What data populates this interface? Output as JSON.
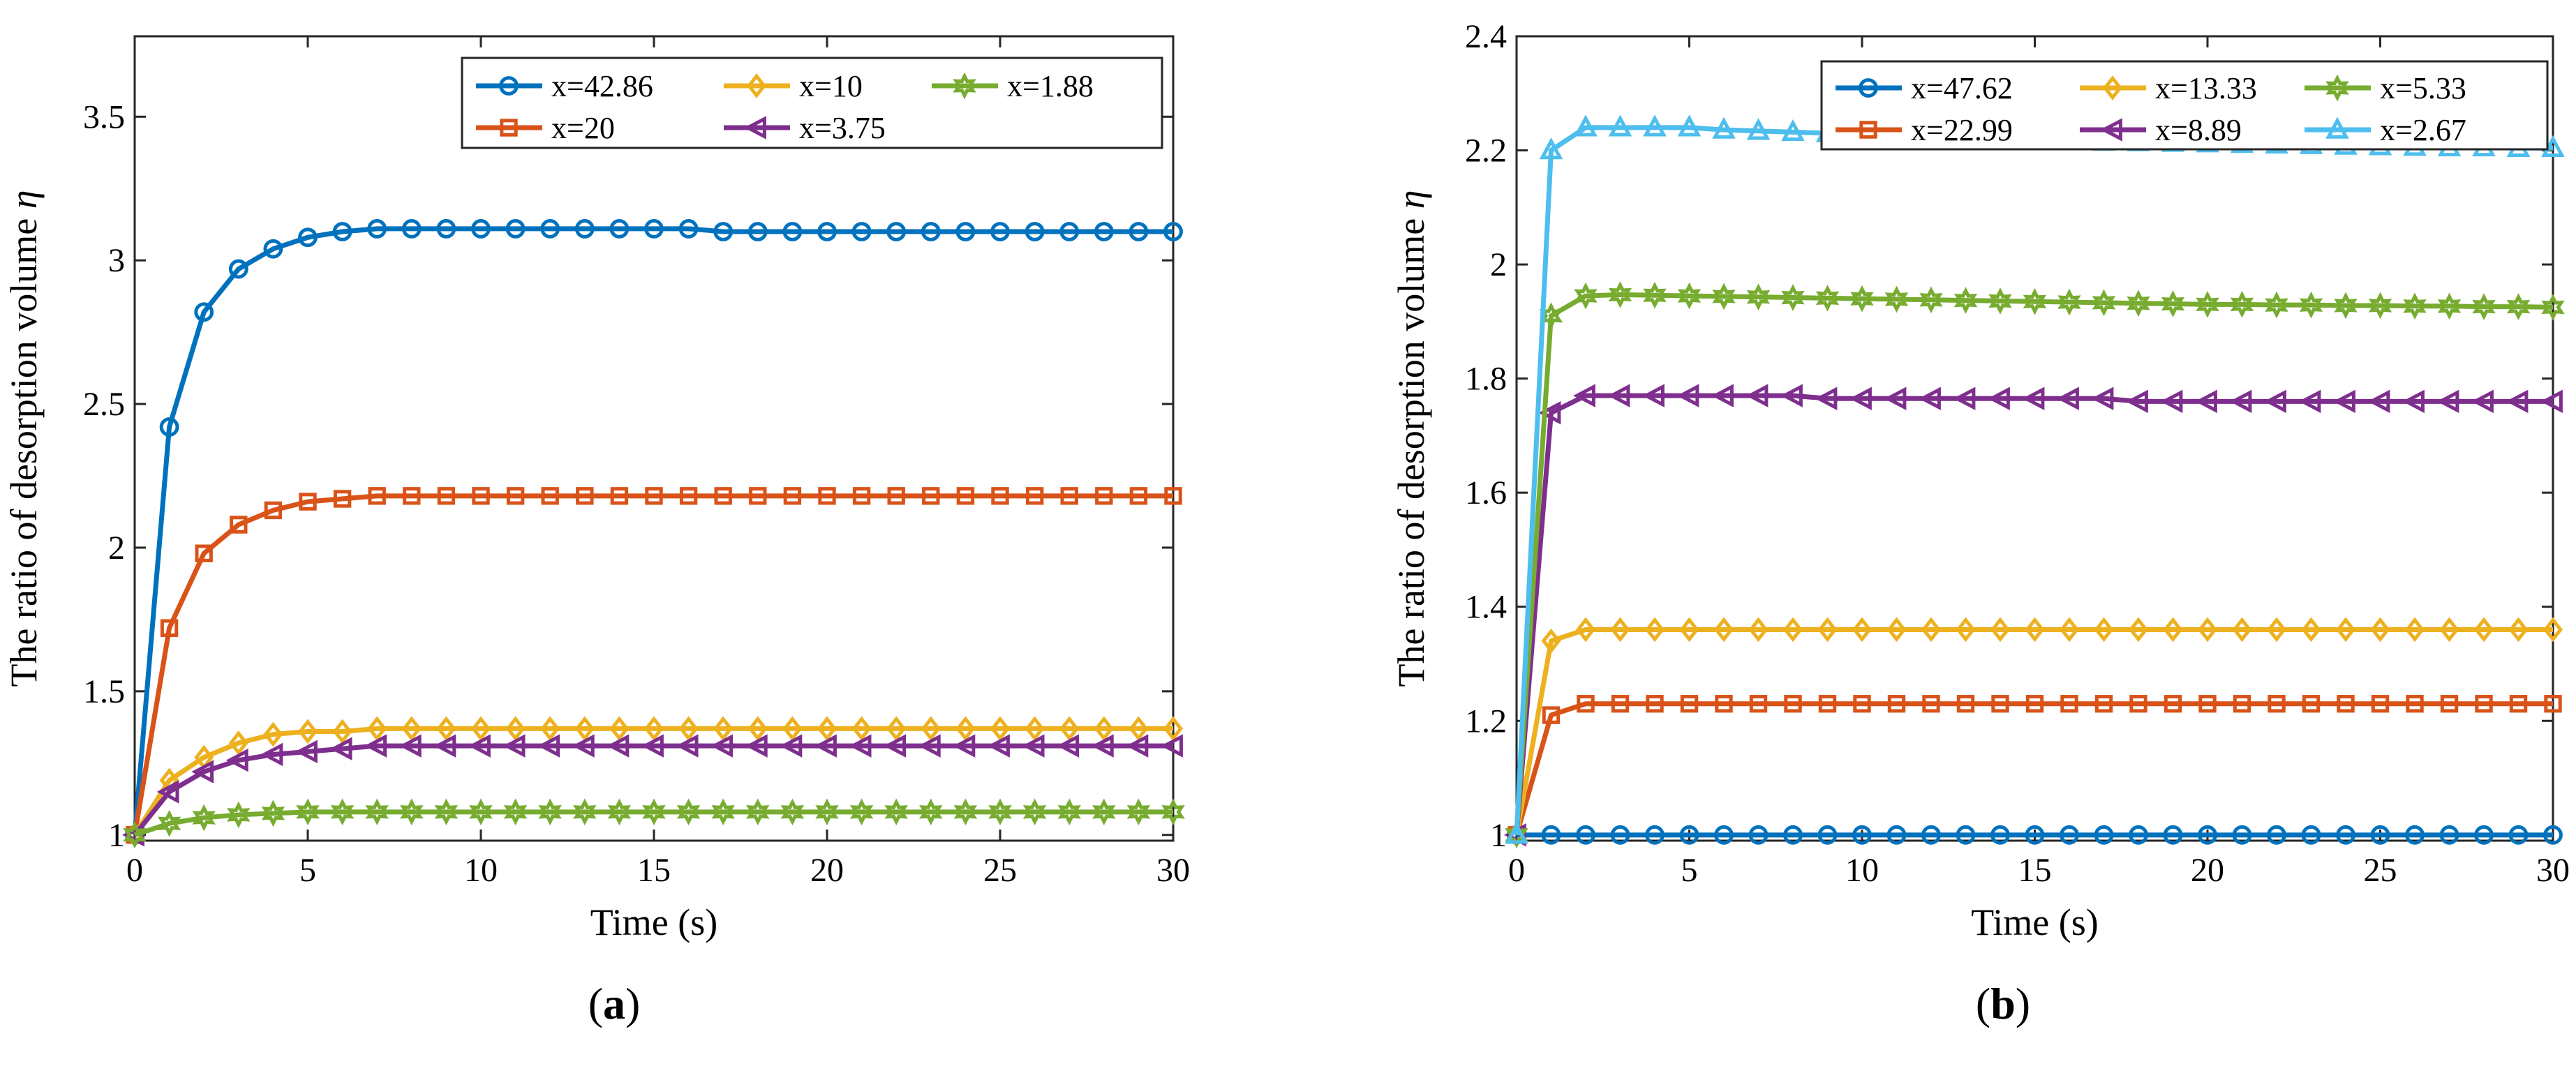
{
  "figure": {
    "colors": {
      "blue": "#0072BD",
      "orange": "#D95319",
      "yellow": "#EDB120",
      "purple": "#7E2F8E",
      "green": "#77AC30",
      "cyan": "#4DBEEE"
    }
  },
  "chart_data": [
    {
      "id": "a",
      "type": "line",
      "subfigure_label": "(a)",
      "subfigure_letter": "a",
      "xlabel": "Time (s)",
      "ylabel_text": "The ratio of desorption volume",
      "ylabel_symbol": "η",
      "xlim": [
        0,
        30
      ],
      "ylim": [
        0.98,
        3.78
      ],
      "xticks": [
        0,
        5,
        10,
        15,
        20,
        25,
        30
      ],
      "xtick_labels": [
        "0",
        "5",
        "10",
        "15",
        "20",
        "25",
        "30"
      ],
      "yticks": [
        1,
        1.5,
        2,
        2.5,
        3,
        3.5
      ],
      "ytick_labels": [
        "1",
        "1.5",
        "2",
        "2.5",
        "3",
        "3.5"
      ],
      "grid": false,
      "legend_position": "top-right",
      "legend_order": [
        "x=42.86",
        "x=10",
        "x=1.88",
        "x=20",
        "x=3.75"
      ],
      "x": [
        0,
        1,
        2,
        3,
        4,
        5,
        6,
        7,
        8,
        9,
        10,
        11,
        12,
        13,
        14,
        15,
        16,
        17,
        18,
        19,
        20,
        21,
        22,
        23,
        24,
        25,
        26,
        27,
        28,
        29,
        30
      ],
      "series": [
        {
          "name": "x=42.86",
          "color": "blue",
          "marker": "circle",
          "values": [
            1.0,
            2.42,
            2.82,
            2.97,
            3.04,
            3.08,
            3.1,
            3.11,
            3.11,
            3.11,
            3.11,
            3.11,
            3.11,
            3.11,
            3.11,
            3.11,
            3.11,
            3.1,
            3.1,
            3.1,
            3.1,
            3.1,
            3.1,
            3.1,
            3.1,
            3.1,
            3.1,
            3.1,
            3.1,
            3.1,
            3.1
          ]
        },
        {
          "name": "x=20",
          "color": "orange",
          "marker": "square",
          "values": [
            1.0,
            1.72,
            1.98,
            2.08,
            2.13,
            2.16,
            2.17,
            2.18,
            2.18,
            2.18,
            2.18,
            2.18,
            2.18,
            2.18,
            2.18,
            2.18,
            2.18,
            2.18,
            2.18,
            2.18,
            2.18,
            2.18,
            2.18,
            2.18,
            2.18,
            2.18,
            2.18,
            2.18,
            2.18,
            2.18,
            2.18
          ]
        },
        {
          "name": "x=10",
          "color": "yellow",
          "marker": "diamond",
          "values": [
            1.0,
            1.19,
            1.27,
            1.32,
            1.35,
            1.36,
            1.36,
            1.37,
            1.37,
            1.37,
            1.37,
            1.37,
            1.37,
            1.37,
            1.37,
            1.37,
            1.37,
            1.37,
            1.37,
            1.37,
            1.37,
            1.37,
            1.37,
            1.37,
            1.37,
            1.37,
            1.37,
            1.37,
            1.37,
            1.37,
            1.37
          ]
        },
        {
          "name": "x=3.75",
          "color": "purple",
          "marker": "triangle-left",
          "values": [
            1.0,
            1.15,
            1.22,
            1.26,
            1.28,
            1.29,
            1.3,
            1.31,
            1.31,
            1.31,
            1.31,
            1.31,
            1.31,
            1.31,
            1.31,
            1.31,
            1.31,
            1.31,
            1.31,
            1.31,
            1.31,
            1.31,
            1.31,
            1.31,
            1.31,
            1.31,
            1.31,
            1.31,
            1.31,
            1.31,
            1.31
          ]
        },
        {
          "name": "x=1.88",
          "color": "green",
          "marker": "hexagram",
          "values": [
            1.0,
            1.04,
            1.06,
            1.07,
            1.075,
            1.08,
            1.08,
            1.08,
            1.08,
            1.08,
            1.08,
            1.08,
            1.08,
            1.08,
            1.08,
            1.08,
            1.08,
            1.08,
            1.08,
            1.08,
            1.08,
            1.08,
            1.08,
            1.08,
            1.08,
            1.08,
            1.08,
            1.08,
            1.08,
            1.08,
            1.08
          ]
        }
      ]
    },
    {
      "id": "b",
      "type": "line",
      "subfigure_label": "(b)",
      "subfigure_letter": "b",
      "xlabel": "Time (s)",
      "ylabel_text": "The ratio of desorption volume",
      "ylabel_symbol": "η",
      "xlim": [
        0,
        30
      ],
      "ylim": [
        0.99,
        2.4
      ],
      "xticks": [
        0,
        5,
        10,
        15,
        20,
        25,
        30
      ],
      "xtick_labels": [
        "0",
        "5",
        "10",
        "15",
        "20",
        "25",
        "30"
      ],
      "yticks": [
        1,
        1.2,
        1.4,
        1.6,
        1.8,
        2,
        2.2,
        2.4
      ],
      "ytick_labels": [
        "1",
        "1.2",
        "1.4",
        "1.6",
        "1.8",
        "2",
        "2.2",
        "2.4"
      ],
      "grid": false,
      "legend_position": "top-right",
      "legend_order": [
        "x=47.62",
        "x=13.33",
        "x=5.33",
        "x=22.99",
        "x=8.89",
        "x=2.67"
      ],
      "x": [
        0,
        1,
        2,
        3,
        4,
        5,
        6,
        7,
        8,
        9,
        10,
        11,
        12,
        13,
        14,
        15,
        16,
        17,
        18,
        19,
        20,
        21,
        22,
        23,
        24,
        25,
        26,
        27,
        28,
        29,
        30
      ],
      "series": [
        {
          "name": "x=47.62",
          "color": "blue",
          "marker": "circle",
          "values": [
            1.0,
            1.0,
            1.0,
            1.0,
            1.0,
            1.0,
            1.0,
            1.0,
            1.0,
            1.0,
            1.0,
            1.0,
            1.0,
            1.0,
            1.0,
            1.0,
            1.0,
            1.0,
            1.0,
            1.0,
            1.0,
            1.0,
            1.0,
            1.0,
            1.0,
            1.0,
            1.0,
            1.0,
            1.0,
            1.0,
            1.0
          ]
        },
        {
          "name": "x=22.99",
          "color": "orange",
          "marker": "square",
          "values": [
            1.0,
            1.21,
            1.23,
            1.23,
            1.23,
            1.23,
            1.23,
            1.23,
            1.23,
            1.23,
            1.23,
            1.23,
            1.23,
            1.23,
            1.23,
            1.23,
            1.23,
            1.23,
            1.23,
            1.23,
            1.23,
            1.23,
            1.23,
            1.23,
            1.23,
            1.23,
            1.23,
            1.23,
            1.23,
            1.23,
            1.23
          ]
        },
        {
          "name": "x=13.33",
          "color": "yellow",
          "marker": "diamond",
          "values": [
            1.0,
            1.34,
            1.36,
            1.36,
            1.36,
            1.36,
            1.36,
            1.36,
            1.36,
            1.36,
            1.36,
            1.36,
            1.36,
            1.36,
            1.36,
            1.36,
            1.36,
            1.36,
            1.36,
            1.36,
            1.36,
            1.36,
            1.36,
            1.36,
            1.36,
            1.36,
            1.36,
            1.36,
            1.36,
            1.36,
            1.36
          ]
        },
        {
          "name": "x=8.89",
          "color": "purple",
          "marker": "triangle-left",
          "values": [
            1.0,
            1.74,
            1.77,
            1.77,
            1.77,
            1.77,
            1.77,
            1.77,
            1.77,
            1.765,
            1.765,
            1.765,
            1.765,
            1.765,
            1.765,
            1.765,
            1.765,
            1.765,
            1.76,
            1.76,
            1.76,
            1.76,
            1.76,
            1.76,
            1.76,
            1.76,
            1.76,
            1.76,
            1.76,
            1.76,
            1.76
          ]
        },
        {
          "name": "x=5.33",
          "color": "green",
          "marker": "hexagram",
          "values": [
            1.0,
            1.91,
            1.945,
            1.947,
            1.946,
            1.945,
            1.944,
            1.943,
            1.942,
            1.941,
            1.94,
            1.939,
            1.938,
            1.937,
            1.936,
            1.935,
            1.934,
            1.933,
            1.932,
            1.931,
            1.93,
            1.93,
            1.929,
            1.929,
            1.928,
            1.928,
            1.927,
            1.927,
            1.926,
            1.926,
            1.925
          ]
        },
        {
          "name": "x=2.67",
          "color": "cyan",
          "marker": "triangle-up",
          "values": [
            1.0,
            2.2,
            2.24,
            2.24,
            2.24,
            2.24,
            2.236,
            2.234,
            2.232,
            2.23,
            2.228,
            2.226,
            2.224,
            2.222,
            2.22,
            2.218,
            2.216,
            2.215,
            2.214,
            2.213,
            2.212,
            2.211,
            2.21,
            2.209,
            2.208,
            2.207,
            2.206,
            2.205,
            2.205,
            2.204,
            2.204
          ]
        }
      ]
    }
  ]
}
